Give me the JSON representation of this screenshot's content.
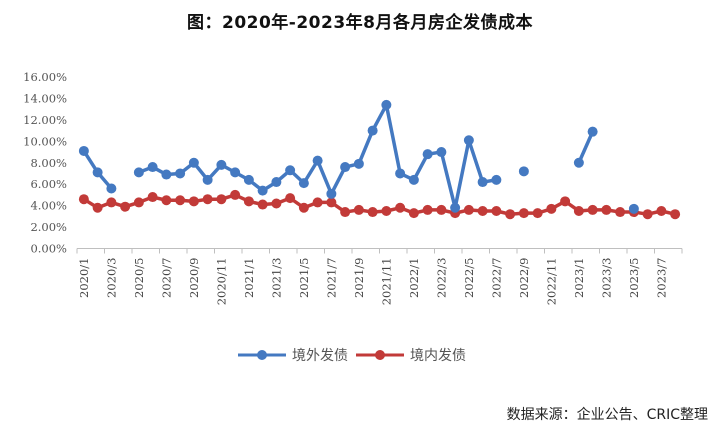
{
  "title": "图：2020年-2023年8月各月房企发债成本",
  "source": "数据来源：企业公告、CRIC整理",
  "legend": {
    "overseas": "境外发债",
    "domestic": "境内发债"
  },
  "colors": {
    "overseas": "#4479C1",
    "domestic": "#C23A38",
    "axis": "#BFBFBF"
  },
  "chart_data": {
    "type": "line",
    "title": "图：2020年-2023年8月各月房企发债成本",
    "xlabel": "",
    "ylabel": "",
    "ylim": [
      0,
      16
    ],
    "yticks": [
      "0.00%",
      "2.00%",
      "4.00%",
      "6.00%",
      "8.00%",
      "10.00%",
      "12.00%",
      "14.00%",
      "16.00%"
    ],
    "grid": false,
    "legend_position": "bottom",
    "x": [
      "2020/1",
      "2020/2",
      "2020/3",
      "2020/4",
      "2020/5",
      "2020/6",
      "2020/7",
      "2020/8",
      "2020/9",
      "2020/10",
      "2020/11",
      "2020/12",
      "2021/1",
      "2021/2",
      "2021/3",
      "2021/4",
      "2021/5",
      "2021/6",
      "2021/7",
      "2021/8",
      "2021/9",
      "2021/10",
      "2021/11",
      "2021/12",
      "2022/1",
      "2022/2",
      "2022/3",
      "2022/4",
      "2022/5",
      "2022/6",
      "2022/7",
      "2022/8",
      "2022/9",
      "2022/10",
      "2022/11",
      "2022/12",
      "2023/1",
      "2023/2",
      "2023/3",
      "2023/4",
      "2023/5",
      "2023/6",
      "2023/7",
      "2023/8"
    ],
    "xtick_labels": [
      "2020/1",
      "2020/3",
      "2020/5",
      "2020/7",
      "2020/9",
      "2020/11",
      "2021/1",
      "2021/3",
      "2021/5",
      "2021/7",
      "2021/9",
      "2021/11",
      "2022/1",
      "2022/3",
      "2022/5",
      "2022/7",
      "2022/9",
      "2022/11",
      "2023/1",
      "2023/3",
      "2023/5",
      "2023/7"
    ],
    "series": [
      {
        "name": "境外发债",
        "color": "#4479C1",
        "values": [
          9.1,
          7.1,
          5.6,
          null,
          7.1,
          7.6,
          6.9,
          7.0,
          8.0,
          6.4,
          7.8,
          7.1,
          6.4,
          5.4,
          6.2,
          7.3,
          6.1,
          8.2,
          5.1,
          7.6,
          7.9,
          11.0,
          13.4,
          7.0,
          6.4,
          8.8,
          9.0,
          3.8,
          10.1,
          6.2,
          6.4,
          null,
          7.2,
          null,
          null,
          null,
          8.0,
          10.9,
          null,
          null,
          3.7,
          null,
          null,
          null
        ]
      },
      {
        "name": "境内发债",
        "color": "#C23A38",
        "values": [
          4.6,
          3.8,
          4.3,
          3.9,
          4.3,
          4.8,
          4.5,
          4.5,
          4.4,
          4.6,
          4.6,
          5.0,
          4.4,
          4.1,
          4.2,
          4.7,
          3.8,
          4.3,
          4.3,
          3.4,
          3.6,
          3.4,
          3.5,
          3.8,
          3.3,
          3.6,
          3.6,
          3.3,
          3.6,
          3.5,
          3.5,
          3.2,
          3.3,
          3.3,
          3.7,
          4.4,
          3.5,
          3.6,
          3.6,
          3.4,
          3.4,
          3.2,
          3.5,
          3.2
        ]
      }
    ]
  }
}
